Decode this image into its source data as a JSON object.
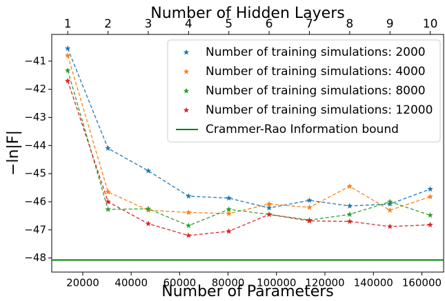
{
  "chart_data": {
    "type": "line",
    "xlabel": "Number of Parameters",
    "x2label": "Number of Hidden Layers",
    "ylabel": "−ln|F|",
    "x": [
      13800,
      30430,
      47060,
      63690,
      80320,
      96950,
      113580,
      130210,
      146840,
      163470
    ],
    "series": [
      {
        "name": "Number of training simulations: 2000",
        "color": "#1f77b4",
        "values": [
          -40.55,
          -44.1,
          -44.9,
          -45.8,
          -45.87,
          -46.22,
          -45.95,
          -46.15,
          -46.08,
          -45.55
        ]
      },
      {
        "name": "Number of training simulations: 4000",
        "color": "#ff7f0e",
        "values": [
          -40.8,
          -45.65,
          -46.3,
          -46.38,
          -46.42,
          -46.08,
          -46.2,
          -45.45,
          -46.3,
          -45.82
        ]
      },
      {
        "name": "Number of training simulations: 8000",
        "color": "#2ca02c",
        "values": [
          -41.33,
          -46.27,
          -46.25,
          -46.85,
          -46.27,
          -46.45,
          -46.65,
          -46.45,
          -46.0,
          -46.48
        ]
      },
      {
        "name": "Number of training simulations: 12000",
        "color": "#d62728",
        "values": [
          -41.7,
          -46.0,
          -46.78,
          -47.2,
          -47.05,
          -46.45,
          -46.68,
          -46.7,
          -46.88,
          -46.82
        ]
      }
    ],
    "hline": {
      "name": "Crammer-Rao Information bound",
      "color": "#008000",
      "value": -48.07
    },
    "xlim": [
      7200,
      169000
    ],
    "xticks": [
      20000,
      40000,
      60000,
      80000,
      100000,
      120000,
      140000,
      160000
    ],
    "x2ticks": [
      {
        "value": 13800,
        "label": "1"
      },
      {
        "value": 30430,
        "label": "2"
      },
      {
        "value": 47060,
        "label": "3"
      },
      {
        "value": 63690,
        "label": "4"
      },
      {
        "value": 80320,
        "label": "5"
      },
      {
        "value": 96950,
        "label": "6"
      },
      {
        "value": 113580,
        "label": "7"
      },
      {
        "value": 130210,
        "label": "8"
      },
      {
        "value": 146840,
        "label": "9"
      },
      {
        "value": 163470,
        "label": "10"
      }
    ],
    "ylim": [
      -48.5,
      -40.05
    ],
    "yticks": [
      {
        "value": -41,
        "label": "−41"
      },
      {
        "value": -42,
        "label": "−42"
      },
      {
        "value": -43,
        "label": "−43"
      },
      {
        "value": -44,
        "label": "−44"
      },
      {
        "value": -45,
        "label": "−45"
      },
      {
        "value": -46,
        "label": "−46"
      },
      {
        "value": -47,
        "label": "−47"
      },
      {
        "value": -48,
        "label": "−48"
      }
    ],
    "legend": "upper right"
  }
}
